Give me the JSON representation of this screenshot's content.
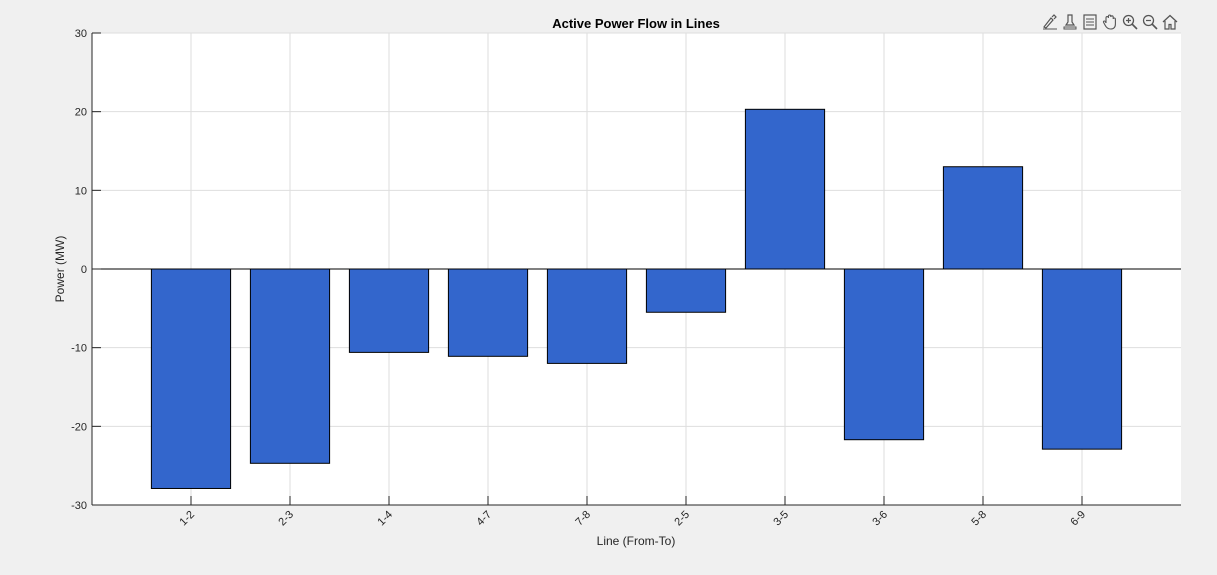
{
  "chart_data": {
    "type": "bar",
    "title": "Active Power Flow in Lines",
    "xlabel": "Line (From-To)",
    "ylabel": "Power (MW)",
    "categories": [
      "1-2",
      "2-3",
      "1-4",
      "4-7",
      "7-8",
      "2-5",
      "3-5",
      "3-6",
      "5-8",
      "6-9"
    ],
    "values": [
      -27.9,
      -24.7,
      -10.6,
      -11.1,
      -12.0,
      -5.5,
      20.3,
      -21.7,
      13.0,
      -22.9
    ],
    "ylim": [
      -30,
      30
    ],
    "yticks": [
      -30,
      -20,
      -10,
      0,
      10,
      20,
      30
    ],
    "xlim": [
      0,
      11
    ],
    "grid": true,
    "bar_color": "#3366cc",
    "edge_color": "#000000"
  },
  "toolbar": {
    "icons": [
      "brush-icon",
      "data-tips-icon",
      "legend-icon",
      "pan-icon",
      "zoom-in-icon",
      "zoom-out-icon",
      "home-icon"
    ]
  }
}
